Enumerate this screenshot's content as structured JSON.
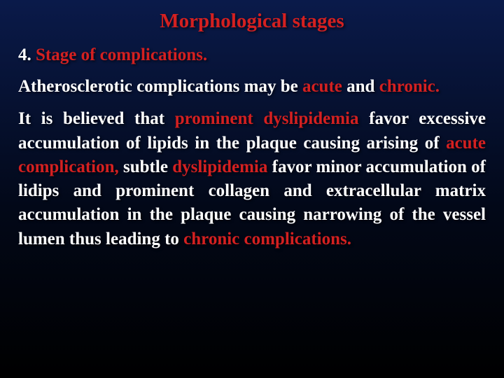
{
  "colors": {
    "background_gradient_top": "#0a1a4a",
    "background_gradient_mid": "#020818",
    "background_gradient_bottom": "#000000",
    "title_color": "#d42020",
    "body_text_color": "#ffffff",
    "highlight_color": "#d42020"
  },
  "typography": {
    "font_family": "Times New Roman",
    "title_fontsize": 29,
    "body_fontsize": 25,
    "font_weight": "bold"
  },
  "title": "Morphological stages",
  "subtitle": {
    "number": "4. ",
    "text": "Stage of complications."
  },
  "p1": {
    "seg1": "Atherosclerotic complications may be ",
    "hl1": "acute",
    "seg2": " and ",
    "hl2": "chronic."
  },
  "p2": {
    "seg1": "It is believed that ",
    "hl1": "prominent dyslipidemia",
    "seg2": " favor excessive accumulation of lipids in the plaque causing arising of ",
    "hl2": "acute complication,",
    "seg3": " subtle ",
    "hl3": "dyslipidemia",
    "seg4": " favor minor accumulation of lidips and prominent collagen and extracellular matrix accumulation in the plaque causing narrowing of the vessel lumen thus leading to ",
    "hl4": "chronic complications."
  }
}
